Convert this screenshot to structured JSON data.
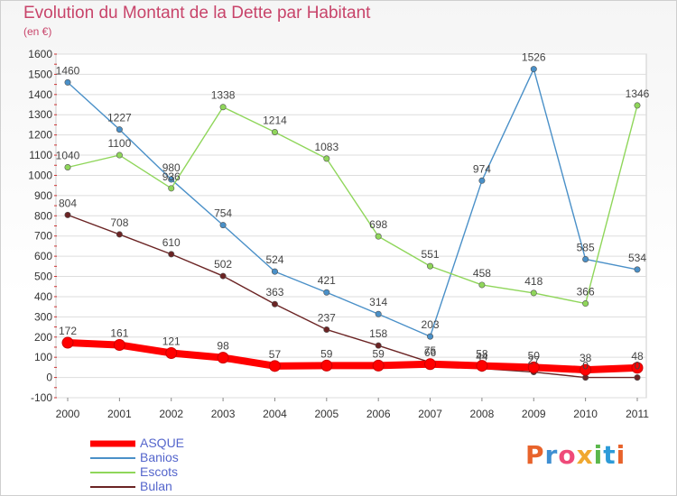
{
  "header": {
    "title": "Evolution du Montant de la Dette par Habitant",
    "unit": "(en €)"
  },
  "logo": {
    "text": "Proxiti",
    "colors": [
      "#e8632b",
      "#3f8fd2",
      "#ef4a79",
      "#f0a830",
      "#5bb84c",
      "#2d9bd8",
      "#e8632b"
    ]
  },
  "chart_data": {
    "type": "line",
    "x": [
      "2000",
      "2001",
      "2002",
      "2003",
      "2004",
      "2005",
      "2006",
      "2007",
      "2008",
      "2009",
      "2010",
      "2011"
    ],
    "ylim": [
      -100,
      1600
    ],
    "yticks": [
      -100,
      0,
      100,
      200,
      300,
      400,
      500,
      600,
      700,
      800,
      900,
      1000,
      1100,
      1200,
      1300,
      1400,
      1500,
      1600
    ],
    "grid": "horizontal",
    "legend": "bottom-left",
    "series": [
      {
        "name": "Banios",
        "color": "#4a90c8",
        "values": [
          1460,
          1227,
          980,
          754,
          524,
          421,
          314,
          203,
          974,
          1526,
          585,
          534
        ]
      },
      {
        "name": "Escots",
        "color": "#8fd65a",
        "values": [
          1040,
          1100,
          936,
          1338,
          1214,
          1083,
          698,
          551,
          458,
          418,
          366,
          1346
        ]
      },
      {
        "name": "Bulan",
        "color": "#6b2424",
        "values": [
          804,
          708,
          610,
          502,
          363,
          237,
          158,
          75,
          44,
          27,
          0,
          0
        ]
      },
      {
        "name": "ASQUE",
        "color": "#ff0000",
        "values": [
          172,
          161,
          121,
          98,
          57,
          59,
          59,
          66,
          58,
          50,
          38,
          48
        ]
      }
    ],
    "labels": {
      "Banios": [
        "1460",
        "1227",
        "980",
        "754",
        "524",
        "421",
        "314",
        "203",
        "974",
        "1526",
        "585",
        "534"
      ],
      "Escots": [
        "1040",
        "1100",
        "936",
        "1338",
        "1214",
        "1083",
        "698",
        "551",
        "458",
        "418",
        "366",
        "1346"
      ],
      "Bulan": [
        "804",
        "708",
        "610",
        "502",
        "363",
        "237",
        "158",
        "75",
        "44",
        "27",
        "0",
        "0"
      ],
      "ASQUE": [
        "172",
        "161",
        "121",
        "98",
        "57",
        "59",
        "59",
        "66",
        "58",
        "50",
        "38",
        "48"
      ]
    },
    "legend_order": [
      "ASQUE",
      "Banios",
      "Escots",
      "Bulan"
    ]
  }
}
